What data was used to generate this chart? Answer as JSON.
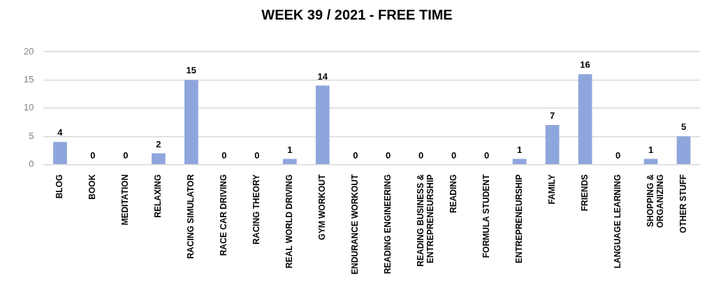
{
  "chart_data": {
    "type": "bar",
    "title": "WEEK 39 / 2021 - FREE TIME",
    "categories": [
      "BLOG",
      "BOOK",
      "MEDITATION",
      "RELAXING",
      "RACING SIMULATOR",
      "RACE CAR DRIVING",
      "RACING THEORY",
      "REAL WORLD DRIVING",
      "GYM WORKOUT",
      "ENDURANCE WORKOUT",
      "READING ENGINEERING",
      "READING BUSINESS & ENTREPRENEURSHIP",
      "READING",
      "FORMULA STUDENT",
      "ENTREPRENEURSHIP",
      "FAMILY",
      "FRIENDS",
      "LANGUAGE LEARNING",
      "SHOPPING & ORGANIZING",
      "OTHER STUFF"
    ],
    "values": [
      4,
      0,
      0,
      2,
      15,
      0,
      0,
      1,
      14,
      0,
      0,
      0,
      0,
      0,
      1,
      7,
      16,
      0,
      1,
      5
    ],
    "color": "#8fa6dc",
    "ylim": [
      0,
      20
    ],
    "yticks": [
      0,
      5,
      10,
      15,
      20
    ],
    "grid": "y",
    "data_labels": true
  }
}
